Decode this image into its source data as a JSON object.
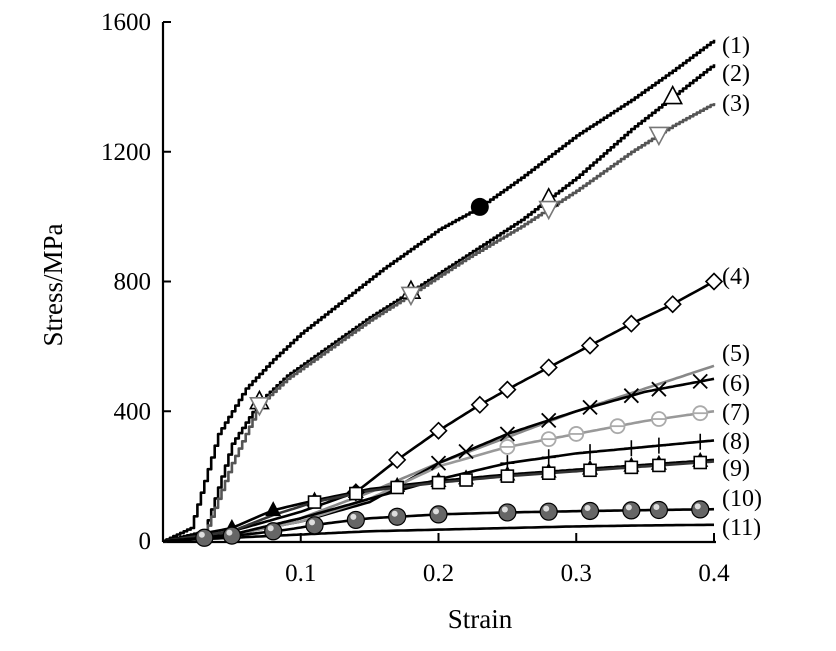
{
  "chart_data": {
    "type": "line",
    "xlabel": "Strain",
    "ylabel": "Stress/MPa",
    "xlim": [
      0,
      0.4
    ],
    "ylim": [
      0,
      1600
    ],
    "xticks": [
      0.1,
      0.2,
      0.3,
      0.4
    ],
    "xtick_labels": [
      "0.1",
      "0.2",
      "0.3",
      "0.4"
    ],
    "yticks": [
      0,
      400,
      800,
      1200,
      1600
    ],
    "ytick_labels": [
      "0",
      "400",
      "800",
      "1200",
      "1600"
    ],
    "grid": false,
    "series": [
      {
        "name": "(1)",
        "color": "#000000",
        "marker": "filled-circle",
        "x": [
          0,
          0.02,
          0.04,
          0.06,
          0.08,
          0.1,
          0.13,
          0.16,
          0.2,
          0.23,
          0.26,
          0.3,
          0.34,
          0.37,
          0.4
        ],
        "y": [
          0,
          40,
          330,
          470,
          560,
          640,
          740,
          840,
          960,
          1030,
          1120,
          1250,
          1360,
          1450,
          1545
        ],
        "marker_x": [
          0.23
        ]
      },
      {
        "name": "(2)",
        "color": "#000000",
        "marker": "open-triangle",
        "x": [
          0,
          0.03,
          0.05,
          0.07,
          0.09,
          0.12,
          0.15,
          0.18,
          0.22,
          0.26,
          0.3,
          0.34,
          0.37,
          0.4
        ],
        "y": [
          0,
          30,
          300,
          430,
          510,
          600,
          690,
          770,
          880,
          990,
          1120,
          1270,
          1370,
          1470
        ],
        "marker_x": [
          0.07,
          0.18,
          0.28,
          0.37
        ]
      },
      {
        "name": "(3)",
        "color": "#555555",
        "marker": "open-triangle-down",
        "x": [
          0,
          0.03,
          0.05,
          0.07,
          0.09,
          0.12,
          0.15,
          0.18,
          0.22,
          0.26,
          0.3,
          0.34,
          0.37,
          0.4
        ],
        "y": [
          0,
          20,
          240,
          420,
          500,
          590,
          680,
          760,
          870,
          970,
          1080,
          1200,
          1280,
          1350
        ],
        "marker_x": [
          0.07,
          0.18,
          0.28,
          0.36
        ]
      },
      {
        "name": "(4)",
        "color": "#000000",
        "marker": "open-diamond",
        "x": [
          0,
          0.05,
          0.1,
          0.14,
          0.17,
          0.2,
          0.23,
          0.26,
          0.3,
          0.34,
          0.37,
          0.4
        ],
        "y": [
          0,
          30,
          90,
          150,
          250,
          340,
          420,
          490,
          580,
          670,
          730,
          800
        ],
        "marker_x": [
          0.14,
          0.17,
          0.2,
          0.23,
          0.25,
          0.28,
          0.31,
          0.34,
          0.37,
          0.4
        ]
      },
      {
        "name": "(5)",
        "color": "#888888",
        "marker": "none",
        "x": [
          0,
          0.05,
          0.1,
          0.15,
          0.2,
          0.25,
          0.3,
          0.35,
          0.4
        ],
        "y": [
          0,
          20,
          70,
          150,
          240,
          320,
          400,
          470,
          540
        ],
        "marker_x": []
      },
      {
        "name": "(6)",
        "color": "#000000",
        "marker": "x-cross",
        "x": [
          0,
          0.05,
          0.1,
          0.15,
          0.2,
          0.25,
          0.3,
          0.35,
          0.4
        ],
        "y": [
          0,
          20,
          60,
          120,
          240,
          330,
          400,
          460,
          500
        ],
        "marker_x": [
          0.2,
          0.22,
          0.25,
          0.28,
          0.31,
          0.34,
          0.36,
          0.39
        ]
      },
      {
        "name": "(7)",
        "color": "#999999",
        "marker": "open-circle-bar",
        "x": [
          0,
          0.05,
          0.1,
          0.15,
          0.2,
          0.25,
          0.3,
          0.35,
          0.4
        ],
        "y": [
          0,
          20,
          60,
          130,
          230,
          290,
          330,
          370,
          400
        ],
        "marker_x": [
          0.25,
          0.28,
          0.3,
          0.33,
          0.36,
          0.39
        ]
      },
      {
        "name": "(8)",
        "color": "#000000",
        "marker": "plus",
        "x": [
          0,
          0.05,
          0.1,
          0.15,
          0.2,
          0.25,
          0.3,
          0.35,
          0.4
        ],
        "y": [
          0,
          20,
          70,
          130,
          190,
          240,
          270,
          290,
          310
        ],
        "marker_x": [
          0.25,
          0.28,
          0.31,
          0.34,
          0.36,
          0.39
        ]
      },
      {
        "name": "(9)",
        "color": "#000000",
        "marker": "filled-up-triangle",
        "x": [
          0,
          0.05,
          0.08,
          0.11,
          0.15,
          0.2,
          0.25,
          0.3,
          0.35,
          0.4
        ],
        "y": [
          0,
          40,
          95,
          125,
          160,
          185,
          205,
          220,
          235,
          250
        ],
        "marker_x": [
          0.05,
          0.08,
          0.11,
          0.14,
          0.17,
          0.2,
          0.22,
          0.25,
          0.28,
          0.31,
          0.34,
          0.36,
          0.39
        ]
      },
      {
        "name": "(9)",
        "color": "#333333",
        "marker": "open-square",
        "x": [
          0,
          0.05,
          0.08,
          0.11,
          0.15,
          0.2,
          0.25,
          0.3,
          0.35,
          0.4
        ],
        "y": [
          0,
          30,
          80,
          120,
          155,
          180,
          200,
          215,
          230,
          245
        ],
        "marker_x": [
          0.11,
          0.14,
          0.17,
          0.2,
          0.22,
          0.25,
          0.28,
          0.31,
          0.34,
          0.36,
          0.39
        ]
      },
      {
        "name": "(10)",
        "color": "#000000",
        "marker": "sphere",
        "x": [
          0,
          0.03,
          0.06,
          0.09,
          0.12,
          0.15,
          0.2,
          0.25,
          0.3,
          0.35,
          0.4
        ],
        "y": [
          0,
          10,
          20,
          35,
          55,
          70,
          82,
          88,
          92,
          95,
          98
        ],
        "marker_x": [
          0.03,
          0.05,
          0.08,
          0.11,
          0.14,
          0.17,
          0.2,
          0.25,
          0.28,
          0.31,
          0.34,
          0.36,
          0.39
        ]
      },
      {
        "name": "(11)",
        "color": "#000000",
        "marker": "none",
        "x": [
          0,
          0.05,
          0.1,
          0.15,
          0.2,
          0.25,
          0.3,
          0.35,
          0.4
        ],
        "y": [
          0,
          10,
          20,
          30,
          35,
          40,
          45,
          48,
          50
        ],
        "marker_x": []
      }
    ]
  }
}
